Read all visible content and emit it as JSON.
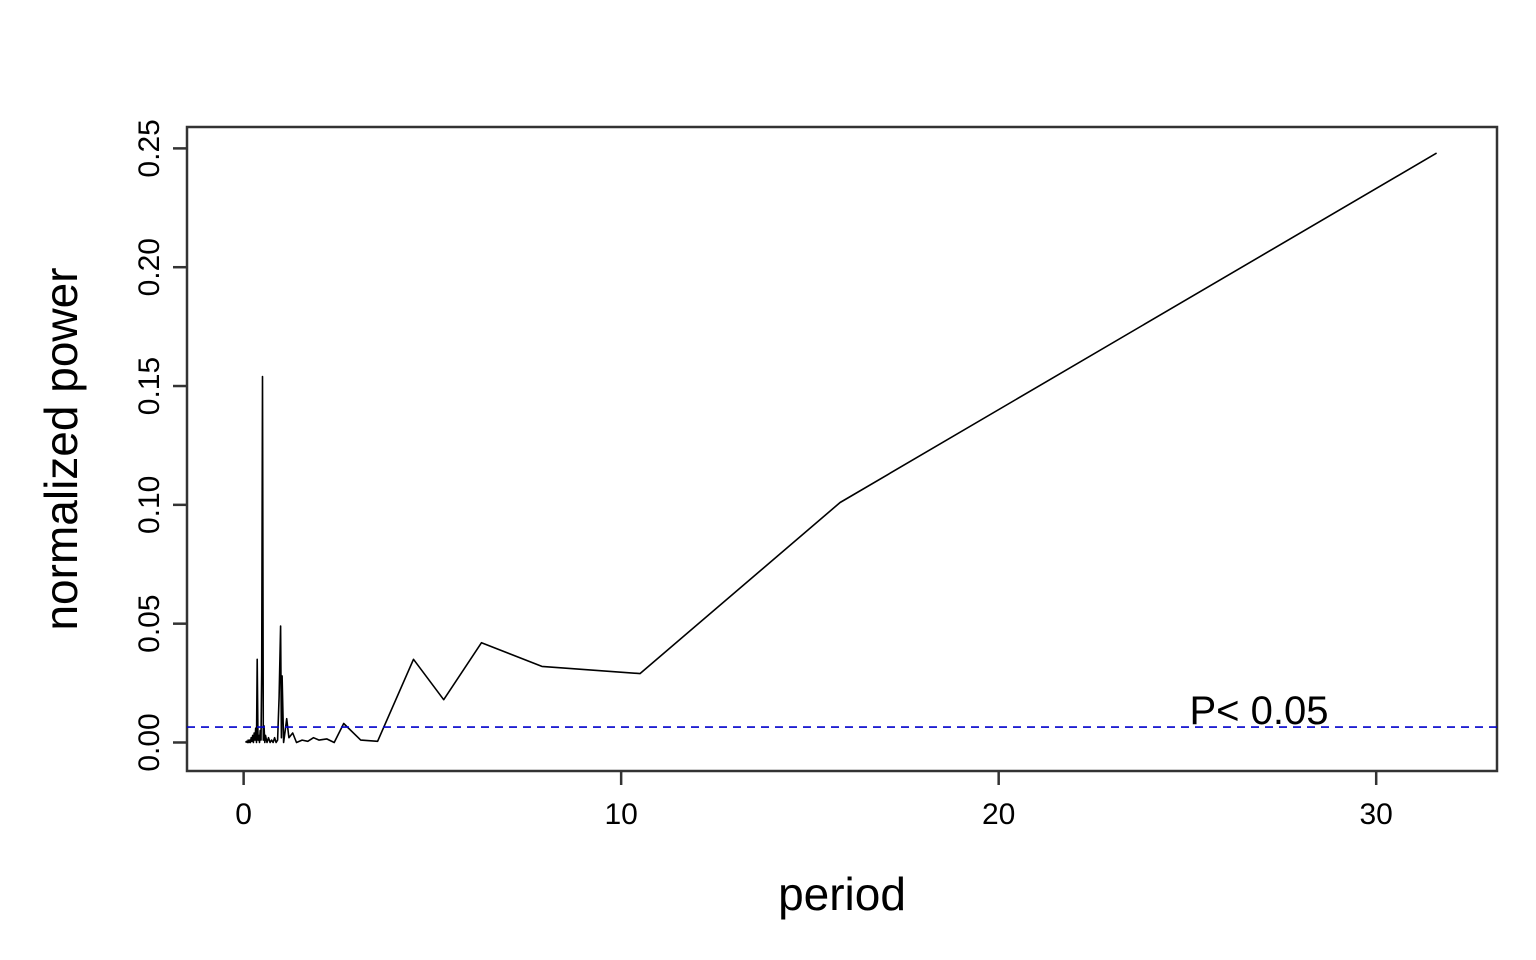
{
  "chart_data": {
    "type": "line",
    "xlabel": "period",
    "ylabel": "normalized power",
    "xlim": [
      -1.5,
      33.2
    ],
    "ylim": [
      -0.012,
      0.259
    ],
    "xticks": [
      0,
      10,
      20,
      30
    ],
    "xtick_labels": [
      "0",
      "10",
      "20",
      "30"
    ],
    "yticks": [
      0.0,
      0.05,
      0.1,
      0.15,
      0.2,
      0.25
    ],
    "ytick_labels": [
      "0.00",
      "0.05",
      "0.10",
      "0.15",
      "0.20",
      "0.25"
    ],
    "grid": false,
    "series": [
      {
        "color": "#000000",
        "points": [
          [
            0.05,
            0.0
          ],
          [
            0.08,
            0.0005
          ],
          [
            0.1,
            0.0
          ],
          [
            0.12,
            0.001
          ],
          [
            0.14,
            0.0
          ],
          [
            0.16,
            0.001
          ],
          [
            0.18,
            0.0
          ],
          [
            0.2,
            0.002
          ],
          [
            0.22,
            0.0005
          ],
          [
            0.24,
            0.003
          ],
          [
            0.26,
            0.0
          ],
          [
            0.28,
            0.004
          ],
          [
            0.3,
            0.001
          ],
          [
            0.32,
            0.006
          ],
          [
            0.34,
            0.0
          ],
          [
            0.36,
            0.035
          ],
          [
            0.38,
            0.001
          ],
          [
            0.4,
            0.003
          ],
          [
            0.42,
            0.0
          ],
          [
            0.44,
            0.005
          ],
          [
            0.46,
            0.001
          ],
          [
            0.48,
            0.03
          ],
          [
            0.5,
            0.154
          ],
          [
            0.52,
            0.001
          ],
          [
            0.54,
            0.007
          ],
          [
            0.56,
            0.0
          ],
          [
            0.58,
            0.003
          ],
          [
            0.62,
            0.0
          ],
          [
            0.66,
            0.002
          ],
          [
            0.7,
            0.0
          ],
          [
            0.74,
            0.001
          ],
          [
            0.78,
            0.0
          ],
          [
            0.82,
            0.002
          ],
          [
            0.86,
            0.0
          ],
          [
            0.9,
            0.001
          ],
          [
            0.94,
            0.019
          ],
          [
            0.98,
            0.049
          ],
          [
            1.0,
            0.002
          ],
          [
            1.02,
            0.028
          ],
          [
            1.06,
            0.0
          ],
          [
            1.1,
            0.005
          ],
          [
            1.14,
            0.01
          ],
          [
            1.2,
            0.002
          ],
          [
            1.3,
            0.004
          ],
          [
            1.4,
            0.0
          ],
          [
            1.55,
            0.001
          ],
          [
            1.7,
            0.0005
          ],
          [
            1.85,
            0.002
          ],
          [
            2.0,
            0.001
          ],
          [
            2.2,
            0.0015
          ],
          [
            2.4,
            0.0
          ],
          [
            2.65,
            0.008
          ],
          [
            3.1,
            0.001
          ],
          [
            3.55,
            0.0005
          ],
          [
            4.5,
            0.035
          ],
          [
            5.3,
            0.018
          ],
          [
            6.3,
            0.042
          ],
          [
            7.9,
            0.032
          ],
          [
            10.5,
            0.029
          ],
          [
            15.8,
            0.101
          ],
          [
            31.6,
            0.248
          ]
        ]
      }
    ],
    "threshold": {
      "value": 0.0065,
      "color": "#0000cc",
      "style": "dashed",
      "label": "P< 0.05"
    }
  }
}
